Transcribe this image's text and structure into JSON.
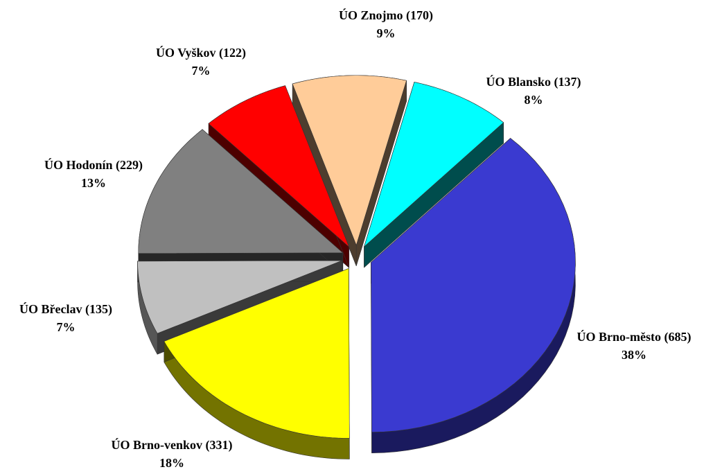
{
  "chart_data": {
    "type": "pie",
    "categories": [
      "ÚO Brno-město (685)",
      "ÚO Brno-venkov (331)",
      "ÚO Břeclav (135)",
      "ÚO Hodonín (229)",
      "ÚO Vyškov (122)",
      "ÚO Znojmo (170)",
      "ÚO Blansko (137)"
    ],
    "values": [
      38,
      18,
      7,
      13,
      7,
      9,
      8
    ],
    "value_labels": [
      "38%",
      "18%",
      "7%",
      "13%",
      "7%",
      "9%",
      "8%"
    ],
    "colors": [
      "#3a3ad0",
      "#ffff00",
      "#c0c0c0",
      "#808080",
      "#ff0000",
      "#ffcc99",
      "#00ffff"
    ]
  }
}
